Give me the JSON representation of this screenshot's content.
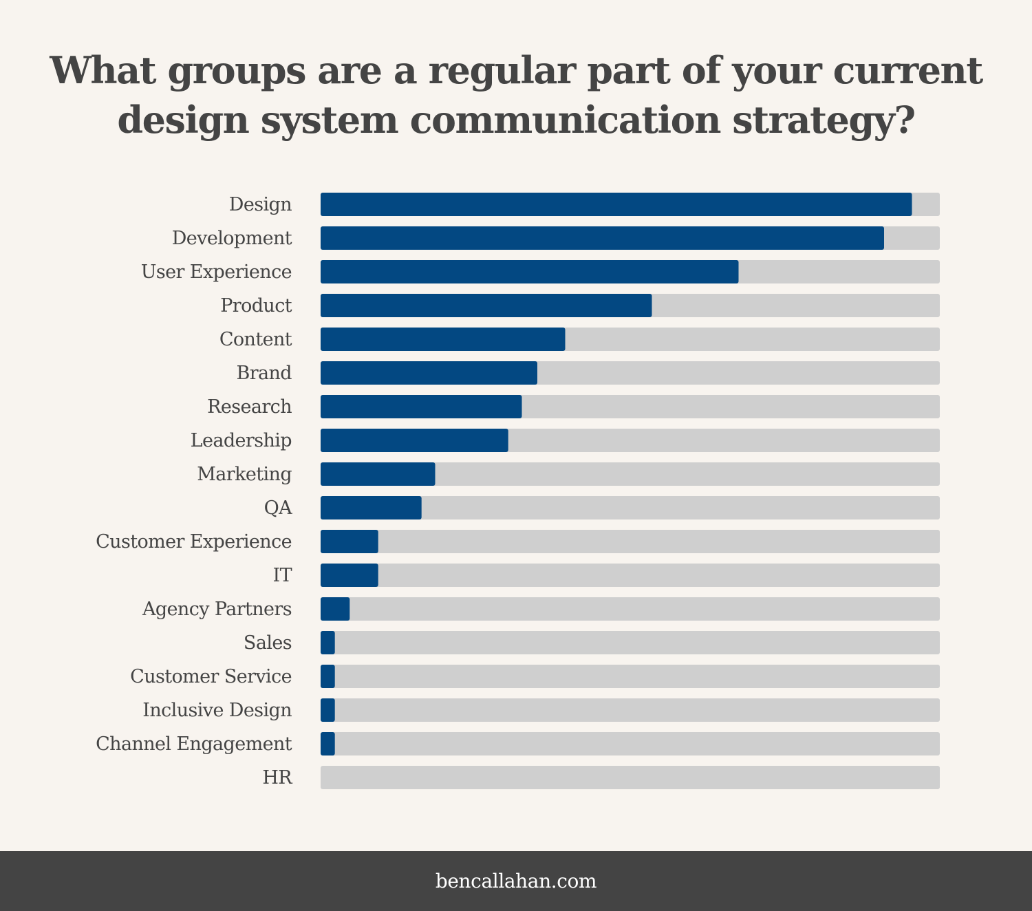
{
  "title": {
    "line1": "What groups are a regular part of your current",
    "line2": "design system communication strategy?"
  },
  "colors": {
    "background": "#f8f4ef",
    "bar_fill": "#034882",
    "bar_track": "#cfcfcf",
    "text": "#444444",
    "footer_background": "#444444",
    "footer_text": "#ffffff"
  },
  "chart_data": {
    "type": "bar",
    "orientation": "horizontal",
    "categories": [
      "Design",
      "Development",
      "User Experience",
      "Product",
      "Content",
      "Brand",
      "Research",
      "Leadership",
      "Marketing",
      "QA",
      "Customer Experience",
      "IT",
      "Agency Partners",
      "Sales",
      "Customer Service",
      "Inclusive Design",
      "Channel Engagement",
      "HR"
    ],
    "values": [
      95.5,
      91,
      67.5,
      53.5,
      39.5,
      35,
      32.5,
      30.3,
      18.5,
      16.3,
      9.3,
      9.3,
      4.7,
      2.3,
      2.3,
      2.3,
      2.3,
      0
    ],
    "xlim": [
      0,
      100
    ],
    "title": "What groups are a regular part of your current design system communication strategy?",
    "xlabel": "",
    "ylabel": "",
    "grid": false,
    "legend": "none"
  },
  "footer": {
    "text": "bencallahan.com"
  }
}
